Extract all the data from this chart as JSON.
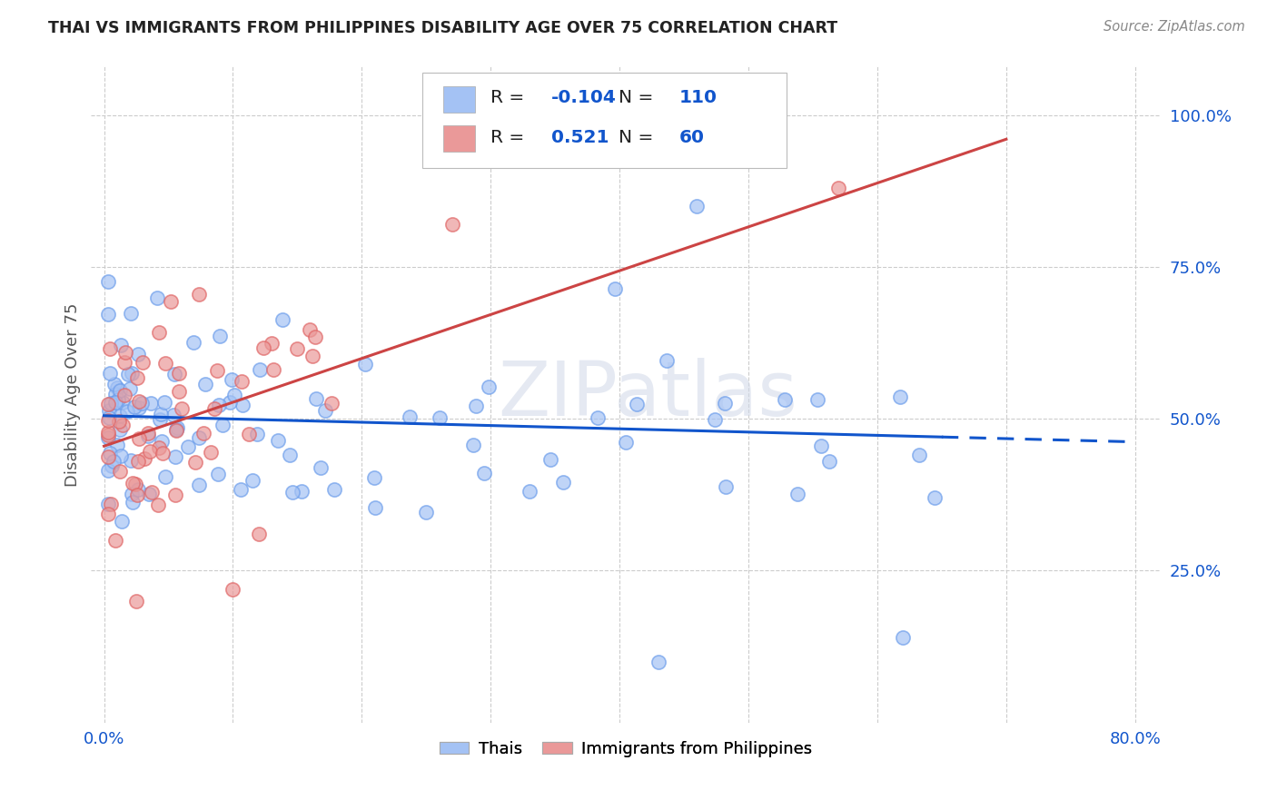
{
  "title": "THAI VS IMMIGRANTS FROM PHILIPPINES DISABILITY AGE OVER 75 CORRELATION CHART",
  "source": "Source: ZipAtlas.com",
  "ylabel": "Disability Age Over 75",
  "x_min": 0.0,
  "x_max": 0.8,
  "y_ticks": [
    0.25,
    0.5,
    0.75,
    1.0
  ],
  "y_tick_labels": [
    "25.0%",
    "50.0%",
    "75.0%",
    "100.0%"
  ],
  "legend_labels": [
    "Thais",
    "Immigrants from Philippines"
  ],
  "blue_color": "#a4c2f4",
  "pink_color": "#ea9999",
  "blue_edge_color": "#6d9eeb",
  "pink_edge_color": "#e06666",
  "blue_line_color": "#1155cc",
  "pink_line_color": "#cc4444",
  "watermark": "ZIPatlas",
  "R_blue": -0.104,
  "N_blue": 110,
  "R_pink": 0.521,
  "N_pink": 60,
  "background_color": "#ffffff",
  "grid_color": "#cccccc",
  "title_color": "#222222",
  "tick_label_color": "#1155cc",
  "label_color": "#555555"
}
